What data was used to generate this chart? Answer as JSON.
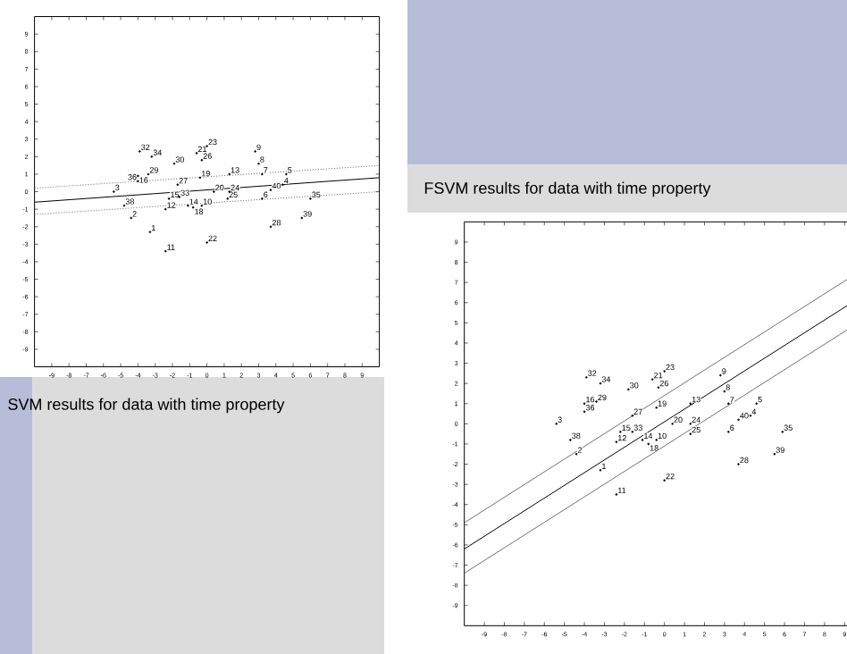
{
  "chart_data": [
    {
      "type": "scatter",
      "title": "SVM results for data with time property",
      "xlim": [
        -10,
        10
      ],
      "ylim": [
        -10,
        10
      ],
      "xticks": [
        -9,
        -8,
        -7,
        -6,
        -5,
        -4,
        -3,
        -2,
        -1,
        0,
        1,
        2,
        3,
        4,
        5,
        6,
        7,
        8,
        9
      ],
      "yticks": [
        -9,
        -8,
        -7,
        -6,
        -5,
        -4,
        -3,
        -2,
        -1,
        0,
        1,
        2,
        3,
        4,
        5,
        6,
        7,
        8,
        9
      ],
      "series": [
        {
          "type": "line",
          "color": "#000000",
          "line_style": "solid",
          "x": [
            -10,
            10
          ],
          "values": [
            -0.6,
            0.8
          ]
        },
        {
          "type": "line",
          "color": "#606060",
          "line_style": "dotted",
          "x": [
            -10,
            10
          ],
          "values": [
            0.2,
            1.5
          ]
        },
        {
          "type": "line",
          "color": "#606060",
          "line_style": "dotted",
          "x": [
            -10,
            10
          ],
          "values": [
            -1.3,
            0.0
          ]
        },
        {
          "color": "#000000",
          "marker": "circle",
          "x": [
            -3.9,
            -3.2,
            -1.9,
            -0.6,
            0.0,
            -0.3,
            2.8,
            3.0,
            3.2,
            4.6,
            -3.4,
            -4.0,
            -4.0,
            -5.4,
            -0.4,
            1.3,
            -1.7,
            0.4,
            1.3,
            1.2,
            3.7,
            4.4,
            3.2,
            6.0,
            -4.8,
            -2.2,
            -1.6,
            -2.4,
            -1.1,
            -0.8,
            -0.3,
            -4.4,
            5.5,
            3.7,
            -3.3,
            0.0,
            -2.4
          ],
          "values": [
            2.3,
            2.0,
            1.6,
            2.2,
            2.6,
            1.8,
            2.3,
            1.6,
            1.0,
            1.0,
            1.0,
            0.9,
            0.6,
            0.0,
            0.8,
            1.0,
            0.4,
            0.0,
            0.0,
            -0.4,
            0.1,
            0.4,
            -0.4,
            -0.4,
            -0.8,
            -0.4,
            -0.3,
            -1.0,
            -0.8,
            -0.9,
            -0.8,
            -1.5,
            -1.5,
            -2.0,
            -2.3,
            -2.9,
            -3.4
          ]
        }
      ],
      "annotations": [
        {
          "text": "32",
          "x": -3.9,
          "y": 2.3
        },
        {
          "text": "34",
          "x": -3.2,
          "y": 2.0
        },
        {
          "text": "30",
          "x": -1.9,
          "y": 1.6
        },
        {
          "text": "21",
          "x": -0.6,
          "y": 2.2
        },
        {
          "text": "23",
          "x": 0.0,
          "y": 2.6
        },
        {
          "text": "26",
          "x": -0.3,
          "y": 1.8
        },
        {
          "text": "9",
          "x": 2.8,
          "y": 2.3
        },
        {
          "text": "8",
          "x": 3.0,
          "y": 1.6
        },
        {
          "text": "7",
          "x": 3.2,
          "y": 1.0
        },
        {
          "text": "5",
          "x": 4.6,
          "y": 1.0
        },
        {
          "text": "29",
          "x": -3.4,
          "y": 1.0
        },
        {
          "text": "16",
          "x": -4.0,
          "y": 0.9
        },
        {
          "text": "36",
          "x": -4.0,
          "y": 0.6
        },
        {
          "text": "3",
          "x": -5.4,
          "y": 0.0
        },
        {
          "text": "19",
          "x": -0.4,
          "y": 0.8
        },
        {
          "text": "13",
          "x": 1.3,
          "y": 1.0
        },
        {
          "text": "27",
          "x": -1.7,
          "y": 0.4
        },
        {
          "text": "20",
          "x": 0.4,
          "y": 0.0
        },
        {
          "text": "24",
          "x": 1.3,
          "y": 0.0
        },
        {
          "text": "25",
          "x": 1.2,
          "y": -0.4
        },
        {
          "text": "40",
          "x": 3.7,
          "y": 0.1
        },
        {
          "text": "4",
          "x": 4.4,
          "y": 0.4
        },
        {
          "text": "6",
          "x": 3.2,
          "y": -0.4
        },
        {
          "text": "35",
          "x": 6.0,
          "y": -0.4
        },
        {
          "text": "38",
          "x": -4.8,
          "y": -0.8
        },
        {
          "text": "15",
          "x": -2.2,
          "y": -0.4
        },
        {
          "text": "33",
          "x": -1.6,
          "y": -0.3
        },
        {
          "text": "12",
          "x": -2.4,
          "y": -1.0
        },
        {
          "text": "14",
          "x": -1.1,
          "y": -0.8
        },
        {
          "text": "18",
          "x": -0.8,
          "y": -0.9
        },
        {
          "text": "10",
          "x": -0.3,
          "y": -0.8
        },
        {
          "text": "2",
          "x": -4.4,
          "y": -1.5
        },
        {
          "text": "39",
          "x": 5.5,
          "y": -1.5
        },
        {
          "text": "28",
          "x": 3.7,
          "y": -2.0
        },
        {
          "text": "1",
          "x": -3.3,
          "y": -2.3
        },
        {
          "text": "22",
          "x": 0.0,
          "y": -2.9
        },
        {
          "text": "11",
          "x": -2.4,
          "y": -3.4
        }
      ]
    },
    {
      "type": "scatter",
      "title": "FSVM results for data with time property",
      "xlim": [
        -10,
        10
      ],
      "ylim": [
        -10,
        10
      ],
      "xticks": [
        -9,
        -8,
        -7,
        -6,
        -5,
        -4,
        -3,
        -2,
        -1,
        0,
        1,
        2,
        3,
        4,
        5,
        6,
        7,
        8,
        9
      ],
      "yticks": [
        -9,
        -8,
        -7,
        -6,
        -5,
        -4,
        -3,
        -2,
        -1,
        0,
        1,
        2,
        3,
        4,
        5,
        6,
        7,
        8,
        9
      ],
      "series": [
        {
          "type": "line",
          "color": "#000000",
          "line_style": "solid",
          "x": [
            -10,
            10
          ],
          "values": [
            -6.2,
            6.4
          ]
        },
        {
          "type": "line",
          "color": "#707070",
          "line_style": "solid",
          "x": [
            -10,
            10
          ],
          "values": [
            -4.9,
            7.7
          ]
        },
        {
          "type": "line",
          "color": "#707070",
          "line_style": "solid",
          "x": [
            -10,
            10
          ],
          "values": [
            -7.4,
            5.2
          ]
        },
        {
          "color": "#000000",
          "marker": "circle",
          "x": [
            -3.9,
            -3.2,
            -1.8,
            -0.6,
            0.0,
            -0.3,
            -4.0,
            -3.4,
            -4.0,
            -5.4,
            -4.7,
            -4.4,
            -3.2,
            -2.4,
            0.0,
            -1.6,
            -2.2,
            -1.6,
            -2.4,
            -1.1,
            -0.8,
            -0.4,
            -0.4,
            1.3,
            0.4,
            1.3,
            1.3,
            2.8,
            3.0,
            3.2,
            4.6,
            4.3,
            3.7,
            3.2,
            5.9,
            3.7,
            5.5
          ],
          "values": [
            2.3,
            2.0,
            1.7,
            2.2,
            2.6,
            1.8,
            1.0,
            1.1,
            0.6,
            0.0,
            -0.8,
            -1.5,
            -2.3,
            -3.5,
            -2.8,
            0.4,
            -0.4,
            -0.4,
            -0.9,
            -0.8,
            -1.0,
            -0.8,
            0.8,
            1.0,
            0.0,
            0.0,
            -0.5,
            2.4,
            1.6,
            1.0,
            1.0,
            0.4,
            0.2,
            -0.4,
            -0.4,
            -2.0,
            -1.5
          ]
        }
      ],
      "annotations": [
        {
          "text": "32",
          "x": -3.9,
          "y": 2.3
        },
        {
          "text": "34",
          "x": -3.2,
          "y": 2.0
        },
        {
          "text": "30",
          "x": -1.8,
          "y": 1.7
        },
        {
          "text": "21",
          "x": -0.6,
          "y": 2.2
        },
        {
          "text": "23",
          "x": 0.0,
          "y": 2.6
        },
        {
          "text": "26",
          "x": -0.3,
          "y": 1.8
        },
        {
          "text": "16",
          "x": -4.0,
          "y": 1.0
        },
        {
          "text": "29",
          "x": -3.4,
          "y": 1.1
        },
        {
          "text": "36",
          "x": -4.0,
          "y": 0.6
        },
        {
          "text": "3",
          "x": -5.4,
          "y": 0.0
        },
        {
          "text": "38",
          "x": -4.7,
          "y": -0.8
        },
        {
          "text": "2",
          "x": -4.4,
          "y": -1.5
        },
        {
          "text": "1",
          "x": -3.2,
          "y": -2.3
        },
        {
          "text": "11",
          "x": -2.4,
          "y": -3.5
        },
        {
          "text": "22",
          "x": 0.0,
          "y": -2.8
        },
        {
          "text": "27",
          "x": -1.6,
          "y": 0.4
        },
        {
          "text": "15",
          "x": -2.2,
          "y": -0.4
        },
        {
          "text": "33",
          "x": -1.6,
          "y": -0.4
        },
        {
          "text": "12",
          "x": -2.4,
          "y": -0.9
        },
        {
          "text": "14",
          "x": -1.1,
          "y": -0.8
        },
        {
          "text": "18",
          "x": -0.8,
          "y": -1.0
        },
        {
          "text": "10",
          "x": -0.4,
          "y": -0.8
        },
        {
          "text": "19",
          "x": -0.4,
          "y": 0.8
        },
        {
          "text": "13",
          "x": 1.3,
          "y": 1.0
        },
        {
          "text": "20",
          "x": 0.4,
          "y": 0.0
        },
        {
          "text": "24",
          "x": 1.3,
          "y": 0.0
        },
        {
          "text": "25",
          "x": 1.3,
          "y": -0.5
        },
        {
          "text": "9",
          "x": 2.8,
          "y": 2.4
        },
        {
          "text": "8",
          "x": 3.0,
          "y": 1.6
        },
        {
          "text": "7",
          "x": 3.2,
          "y": 1.0
        },
        {
          "text": "5",
          "x": 4.6,
          "y": 1.0
        },
        {
          "text": "4",
          "x": 4.3,
          "y": 0.4
        },
        {
          "text": "40",
          "x": 3.7,
          "y": 0.2
        },
        {
          "text": "6",
          "x": 3.2,
          "y": -0.4
        },
        {
          "text": "35",
          "x": 5.9,
          "y": -0.4
        },
        {
          "text": "28",
          "x": 3.7,
          "y": -2.0
        },
        {
          "text": "39",
          "x": 5.5,
          "y": -1.5
        }
      ]
    }
  ]
}
